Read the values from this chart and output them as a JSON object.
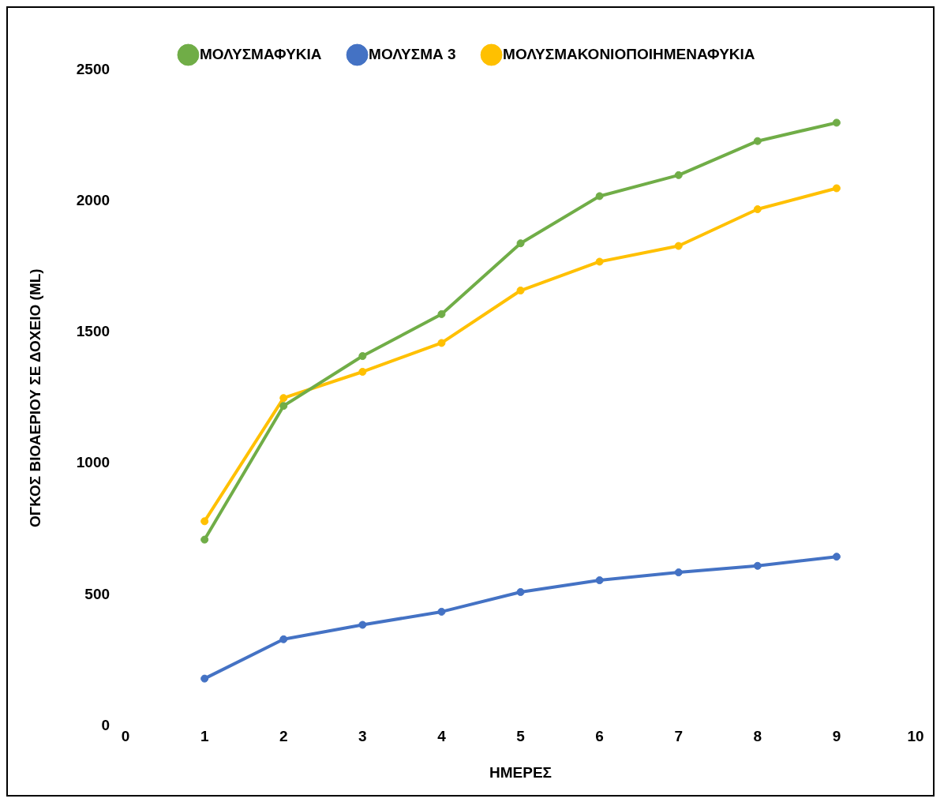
{
  "chart_data": {
    "type": "line",
    "xlabel": "ΗΜΕΡΕΣ",
    "ylabel": "ΟΓΚΟΣ ΒΙΟΑΕΡΙΟΥ ΣΕ ΔΟΧΕΙΟ (ML)",
    "x": [
      1,
      2,
      3,
      4,
      5,
      6,
      7,
      8,
      9
    ],
    "series": [
      {
        "name": "ΜΟΛΥΣΜΑΦΥΚΙΑ",
        "color": "#70ad47",
        "values": [
          710,
          1220,
          1410,
          1570,
          1840,
          2020,
          2100,
          2230,
          2300
        ]
      },
      {
        "name": "ΜΟΛΥΣΜΑ 3",
        "color": "#4472c4",
        "values": [
          180,
          330,
          385,
          435,
          510,
          555,
          585,
          610,
          645
        ]
      },
      {
        "name": "ΜΟΛΥΣΜΑΚΟΝΙΟΠΟΙΗΜΕΝΑΦΥΚΙΑ",
        "color": "#ffc000",
        "values": [
          780,
          1250,
          1350,
          1460,
          1660,
          1770,
          1830,
          1970,
          2050
        ]
      }
    ],
    "xlim": [
      0,
      10
    ],
    "xticks": [
      0,
      1,
      2,
      3,
      4,
      5,
      6,
      7,
      8,
      9,
      10
    ],
    "ylim": [
      0,
      2500
    ],
    "yticks": [
      0,
      500,
      1000,
      1500,
      2000,
      2500
    ],
    "legend": "top",
    "marker": "circle",
    "line_style": "solid"
  }
}
